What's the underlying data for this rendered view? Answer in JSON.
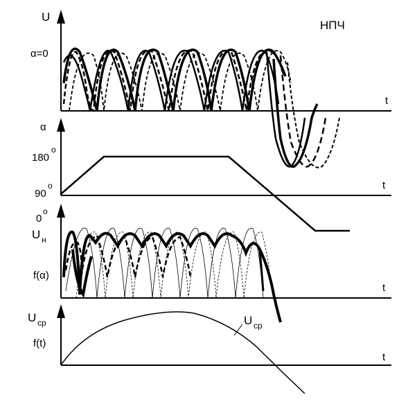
{
  "title": "НПЧ",
  "panel1": {
    "ylabel": "U",
    "alpha_label": "α=0",
    "tlabel": "t"
  },
  "panel2": {
    "ylabel": "α",
    "tick_180": "180",
    "tick_90": "90",
    "tick_0": "0",
    "tlabel": "t"
  },
  "panel3": {
    "ylabel_main": "U",
    "ylabel_sub": "н",
    "falpha": "f(α)",
    "tlabel": "t"
  },
  "panel4": {
    "ylabel_main": "U",
    "ylabel_sub": "ср",
    "ft": "f(t)",
    "curve_main": "U",
    "curve_sub": "ср",
    "tlabel": "t"
  },
  "degree": "o"
}
